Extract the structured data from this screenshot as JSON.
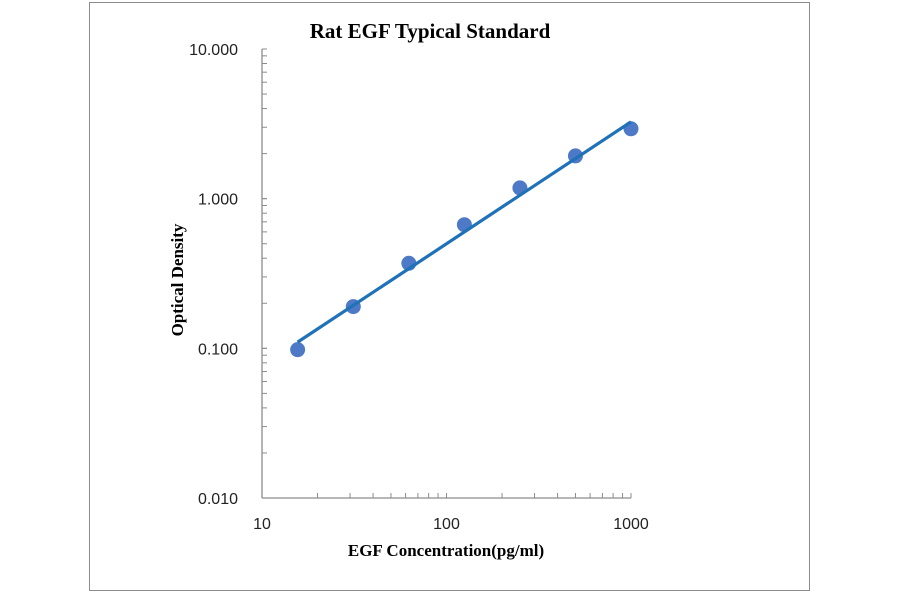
{
  "chart_data": {
    "type": "scatter",
    "title": "Rat EGF Typical Standard",
    "xlabel": "EGF Concentration(pg/ml)",
    "ylabel": "Optical Density",
    "x_scale": "log",
    "y_scale": "log",
    "xlim": [
      10,
      1000
    ],
    "ylim": [
      0.01,
      10
    ],
    "x_ticks": [
      "10",
      "100",
      "1000"
    ],
    "y_ticks": [
      "0.010",
      "0.100",
      "1.000",
      "10.000"
    ],
    "grid": false,
    "legend": "none",
    "series": [
      {
        "x": [
          15.6,
          31.25,
          62.5,
          125,
          250,
          500,
          1000
        ],
        "y": [
          0.098,
          0.19,
          0.37,
          0.67,
          1.18,
          1.93,
          2.93
        ],
        "color": "#4472C4"
      }
    ],
    "trendline": {
      "type": "power",
      "x": [
        15.6,
        1000
      ],
      "y": [
        0.11,
        3.26
      ],
      "color": "#1F72B8"
    }
  }
}
